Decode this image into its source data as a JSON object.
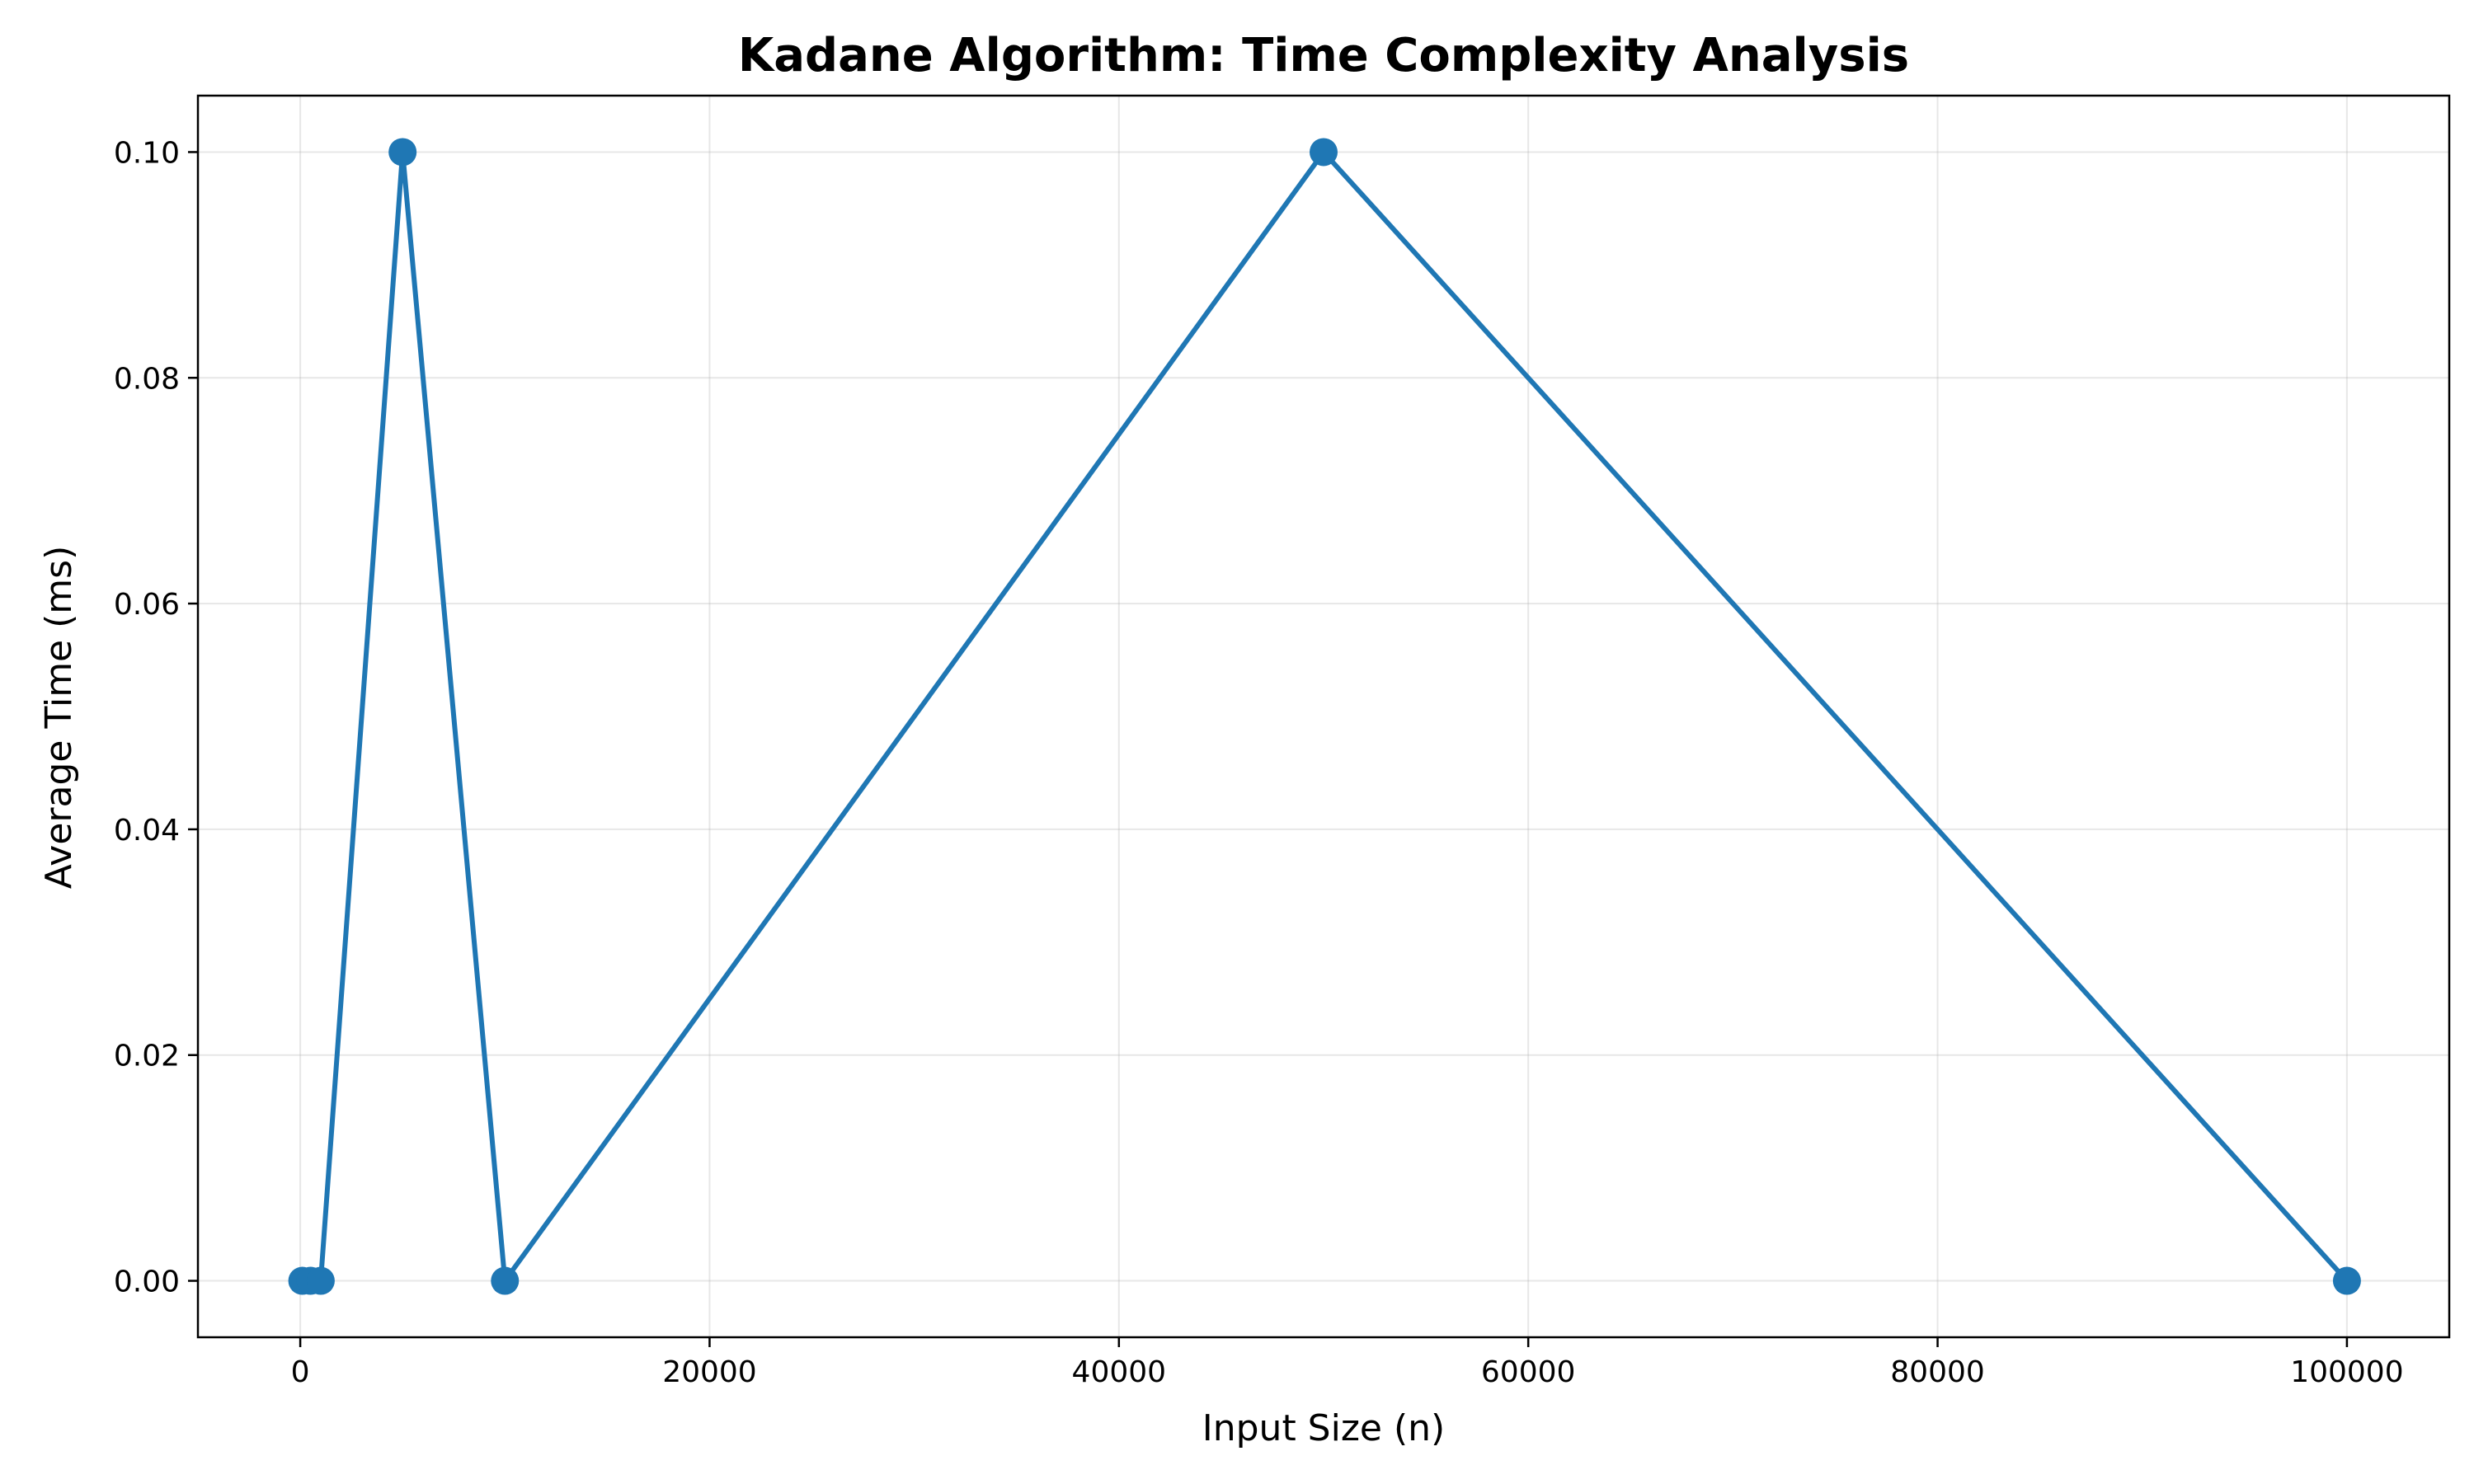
{
  "chart_data": {
    "type": "line",
    "title": "Kadane Algorithm: Time Complexity Analysis",
    "xlabel": "Input Size (n)",
    "ylabel": "Average Time (ms)",
    "xlim": [
      -5000,
      105000
    ],
    "ylim": [
      -0.005,
      0.105
    ],
    "xticks": [
      0,
      20000,
      40000,
      60000,
      80000,
      100000
    ],
    "xtick_labels": [
      "0",
      "20000",
      "40000",
      "60000",
      "80000",
      "100000"
    ],
    "yticks": [
      0.0,
      0.02,
      0.04,
      0.06,
      0.08,
      0.1
    ],
    "ytick_labels": [
      "0.00",
      "0.02",
      "0.04",
      "0.06",
      "0.08",
      "0.10"
    ],
    "grid": true,
    "series": [
      {
        "color": "#1f77b4",
        "marker": "circle",
        "x": [
          100,
          500,
          1000,
          5000,
          10000,
          50000,
          100000
        ],
        "y": [
          0.0,
          0.0,
          0.0,
          0.1,
          0.0,
          0.1,
          0.0
        ]
      }
    ]
  }
}
